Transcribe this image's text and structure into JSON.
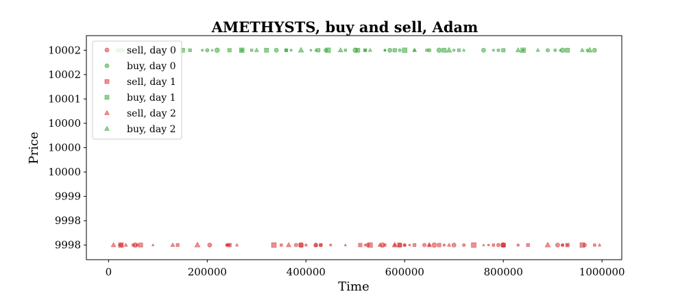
{
  "chart_data": {
    "type": "scatter",
    "title": "AMETHYSTS, buy and sell, Adam",
    "xlabel": "Time",
    "ylabel": "Price",
    "xlim": [
      -45000,
      1040000
    ],
    "ylim": [
      9997.7,
      10002.3
    ],
    "x_ticks": [
      {
        "value": 0,
        "label": "0"
      },
      {
        "value": 200000,
        "label": "200000"
      },
      {
        "value": 400000,
        "label": "400000"
      },
      {
        "value": 600000,
        "label": "600000"
      },
      {
        "value": 800000,
        "label": "800000"
      },
      {
        "value": 1000000,
        "label": "1000000"
      }
    ],
    "y_ticks": [
      {
        "value": 9998,
        "label": "9998"
      },
      {
        "value": 9998.5,
        "label": "9998"
      },
      {
        "value": 9999,
        "label": "9999"
      },
      {
        "value": 9999.5,
        "label": "10000"
      },
      {
        "value": 10000,
        "label": "10000"
      },
      {
        "value": 10000.5,
        "label": "10000"
      },
      {
        "value": 10001,
        "label": "10001"
      },
      {
        "value": 10001.5,
        "label": "10002"
      },
      {
        "value": 10002,
        "label": "10002"
      }
    ],
    "grid": false,
    "legend_position": "top-left",
    "colors": {
      "sell": "#d62728",
      "buy": "#2ca02c"
    },
    "series": [
      {
        "name": "sell, day 0",
        "marker": "circle",
        "side": "sell",
        "y": 9998,
        "x": [
          22000,
          26000,
          54000,
          58000,
          205000,
          240000,
          245000,
          380000,
          390000,
          400000,
          420000,
          430000,
          520000,
          525000,
          555000,
          580000,
          590000,
          600000,
          610000,
          640000,
          660000,
          680000,
          700000,
          720000,
          770000,
          790000,
          800000,
          830000,
          910000,
          920000,
          930000,
          965000
        ]
      },
      {
        "name": "buy, day 0",
        "marker": "circle",
        "side": "buy",
        "y": 10002,
        "x": [
          18000,
          25000,
          30000,
          90000,
          100000,
          110000,
          200000,
          220000,
          270000,
          340000,
          360000,
          410000,
          440000,
          500000,
          520000,
          570000,
          590000,
          620000,
          650000,
          670000,
          700000,
          760000,
          790000,
          840000,
          890000,
          920000,
          970000,
          985000
        ]
      },
      {
        "name": "sell, day 1",
        "marker": "square",
        "side": "sell",
        "y": 9998,
        "x": [
          25000,
          50000,
          65000,
          140000,
          240000,
          245000,
          335000,
          350000,
          390000,
          430000,
          450000,
          510000,
          530000,
          560000,
          590000,
          620000,
          650000,
          670000,
          740000,
          780000,
          800000,
          850000,
          920000,
          930000,
          960000,
          985000
        ]
      },
      {
        "name": "buy, day 1",
        "marker": "square",
        "side": "buy",
        "y": 10002,
        "x": [
          40000,
          150000,
          165000,
          190000,
          245000,
          270000,
          290000,
          320000,
          360000,
          370000,
          425000,
          445000,
          480000,
          505000,
          520000,
          560000,
          580000,
          600000,
          645000,
          680000,
          710000,
          780000,
          800000,
          840000,
          905000,
          930000
        ]
      },
      {
        "name": "sell, day 2",
        "marker": "triangle",
        "side": "sell",
        "y": 9998,
        "x": [
          10000,
          35000,
          90000,
          130000,
          180000,
          260000,
          365000,
          420000,
          480000,
          550000,
          580000,
          600000,
          650000,
          690000,
          760000,
          800000,
          890000,
          995000
        ]
      },
      {
        "name": "buy, day 2",
        "marker": "triangle",
        "side": "buy",
        "y": 10002,
        "x": [
          100000,
          210000,
          300000,
          390000,
          420000,
          470000,
          530000,
          560000,
          620000,
          690000,
          720000,
          830000,
          870000,
          915000,
          960000,
          975000
        ]
      }
    ]
  }
}
